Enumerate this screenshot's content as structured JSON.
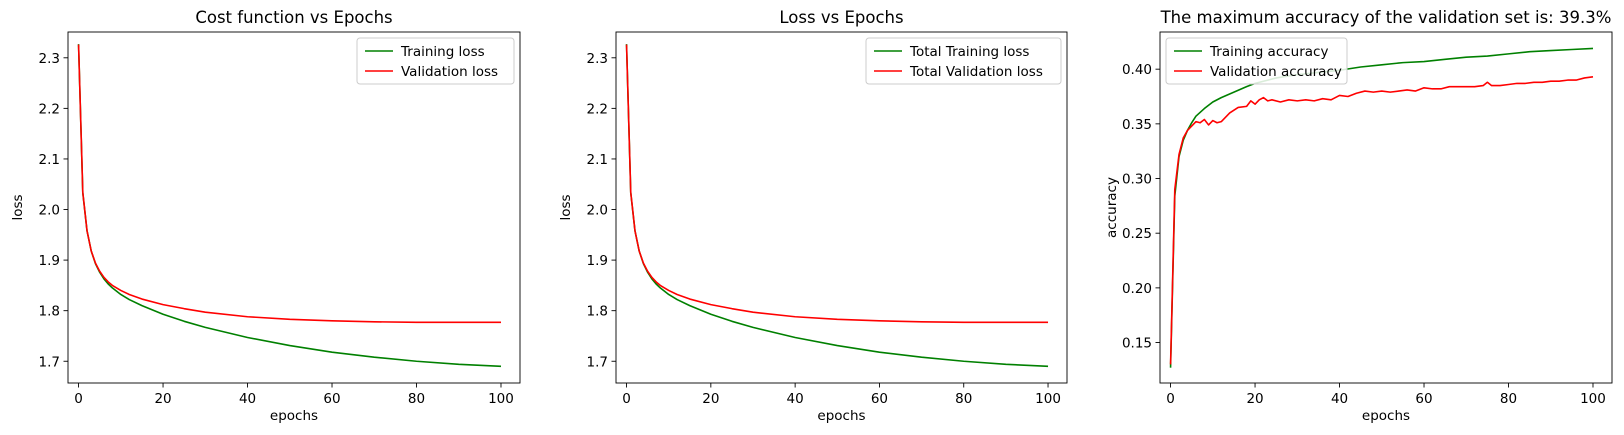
{
  "chart_data": [
    {
      "type": "line",
      "title": "Cost function vs Epochs",
      "xlabel": "epochs",
      "ylabel": "loss",
      "xlim": [
        -2.5,
        104.5
      ],
      "ylim": [
        1.657,
        2.351
      ],
      "xticks": [
        0,
        20,
        40,
        60,
        80,
        100
      ],
      "yticks": [
        1.7,
        1.8,
        1.9,
        2.0,
        2.1,
        2.2,
        2.3
      ],
      "xtick_labels": [
        "0",
        "20",
        "40",
        "60",
        "80",
        "100"
      ],
      "ytick_labels": [
        "1.7",
        "1.8",
        "1.9",
        "2.0",
        "2.1",
        "2.2",
        "2.3"
      ],
      "legend_position": "upper right",
      "x": [
        0,
        1,
        2,
        3,
        4,
        5,
        6,
        7,
        8,
        10,
        12,
        15,
        20,
        25,
        30,
        40,
        50,
        60,
        70,
        80,
        90,
        100
      ],
      "series": [
        {
          "name": "Training loss",
          "color": "#008000",
          "values": [
            2.327,
            2.033,
            1.958,
            1.918,
            1.893,
            1.876,
            1.863,
            1.853,
            1.845,
            1.832,
            1.822,
            1.81,
            1.793,
            1.779,
            1.767,
            1.747,
            1.731,
            1.718,
            1.708,
            1.7,
            1.694,
            1.69
          ]
        },
        {
          "name": "Validation loss",
          "color": "#ff0000",
          "values": [
            2.326,
            2.034,
            1.958,
            1.918,
            1.894,
            1.878,
            1.866,
            1.857,
            1.85,
            1.84,
            1.832,
            1.823,
            1.812,
            1.804,
            1.797,
            1.788,
            1.783,
            1.78,
            1.778,
            1.777,
            1.777,
            1.777
          ]
        }
      ]
    },
    {
      "type": "line",
      "title": "Loss vs Epochs",
      "xlabel": "epochs",
      "ylabel": "loss",
      "xlim": [
        -2.5,
        104.5
      ],
      "ylim": [
        1.657,
        2.351
      ],
      "xticks": [
        0,
        20,
        40,
        60,
        80,
        100
      ],
      "yticks": [
        1.7,
        1.8,
        1.9,
        2.0,
        2.1,
        2.2,
        2.3
      ],
      "xtick_labels": [
        "0",
        "20",
        "40",
        "60",
        "80",
        "100"
      ],
      "ytick_labels": [
        "1.7",
        "1.8",
        "1.9",
        "2.0",
        "2.1",
        "2.2",
        "2.3"
      ],
      "legend_position": "upper right",
      "x": [
        0,
        1,
        2,
        3,
        4,
        5,
        6,
        7,
        8,
        10,
        12,
        15,
        20,
        25,
        30,
        40,
        50,
        60,
        70,
        80,
        90,
        100
      ],
      "series": [
        {
          "name": "Total Training loss",
          "color": "#008000",
          "values": [
            2.327,
            2.033,
            1.958,
            1.918,
            1.893,
            1.876,
            1.863,
            1.853,
            1.845,
            1.832,
            1.822,
            1.81,
            1.793,
            1.779,
            1.767,
            1.747,
            1.731,
            1.718,
            1.708,
            1.7,
            1.694,
            1.69
          ]
        },
        {
          "name": "Total Validation loss",
          "color": "#ff0000",
          "values": [
            2.326,
            2.034,
            1.958,
            1.918,
            1.894,
            1.878,
            1.866,
            1.857,
            1.85,
            1.84,
            1.832,
            1.823,
            1.812,
            1.804,
            1.797,
            1.788,
            1.783,
            1.78,
            1.778,
            1.777,
            1.777,
            1.777
          ]
        }
      ]
    },
    {
      "type": "line",
      "title": "The maximum accuracy of the validation set is: 39.3%",
      "xlabel": "epochs",
      "ylabel": "accuracy",
      "xlim": [
        -2.5,
        104.5
      ],
      "ylim": [
        0.113,
        0.434
      ],
      "xticks": [
        0,
        20,
        40,
        60,
        80,
        100
      ],
      "yticks": [
        0.15,
        0.2,
        0.25,
        0.3,
        0.35,
        0.4
      ],
      "xtick_labels": [
        "0",
        "20",
        "40",
        "60",
        "80",
        "100"
      ],
      "ytick_labels": [
        "0.15",
        "0.20",
        "0.25",
        "0.30",
        "0.35",
        "0.40"
      ],
      "legend_position": "upper left",
      "series": [
        {
          "name": "Training accuracy",
          "color": "#008000",
          "x": [
            0,
            1,
            2,
            3,
            4,
            5,
            6,
            8,
            10,
            12,
            15,
            18,
            20,
            25,
            30,
            35,
            40,
            45,
            50,
            55,
            60,
            65,
            70,
            75,
            80,
            85,
            90,
            95,
            100
          ],
          "values": [
            0.127,
            0.284,
            0.32,
            0.335,
            0.344,
            0.351,
            0.357,
            0.364,
            0.37,
            0.374,
            0.379,
            0.384,
            0.387,
            0.392,
            0.395,
            0.397,
            0.399,
            0.402,
            0.404,
            0.406,
            0.407,
            0.409,
            0.411,
            0.412,
            0.414,
            0.416,
            0.417,
            0.418,
            0.419
          ]
        },
        {
          "name": "Validation accuracy",
          "color": "#ff0000",
          "x": [
            0,
            1,
            2,
            3,
            4,
            5,
            6,
            7,
            8,
            9,
            10,
            11,
            12,
            13,
            14,
            16,
            18,
            19,
            20,
            21,
            22,
            23,
            24,
            26,
            28,
            30,
            32,
            34,
            36,
            38,
            40,
            42,
            44,
            46,
            48,
            50,
            52,
            54,
            56,
            58,
            60,
            62,
            64,
            66,
            68,
            70,
            72,
            74,
            75,
            76,
            78,
            80,
            82,
            84,
            86,
            88,
            90,
            92,
            94,
            96,
            98,
            100
          ],
          "values": [
            0.13,
            0.29,
            0.322,
            0.337,
            0.344,
            0.348,
            0.352,
            0.351,
            0.354,
            0.349,
            0.353,
            0.351,
            0.352,
            0.356,
            0.36,
            0.365,
            0.366,
            0.371,
            0.368,
            0.372,
            0.374,
            0.371,
            0.372,
            0.37,
            0.372,
            0.371,
            0.372,
            0.371,
            0.373,
            0.372,
            0.376,
            0.375,
            0.378,
            0.38,
            0.379,
            0.38,
            0.379,
            0.38,
            0.381,
            0.38,
            0.383,
            0.382,
            0.382,
            0.384,
            0.384,
            0.384,
            0.384,
            0.385,
            0.388,
            0.385,
            0.385,
            0.386,
            0.387,
            0.387,
            0.388,
            0.388,
            0.389,
            0.389,
            0.39,
            0.39,
            0.392,
            0.393
          ]
        }
      ]
    }
  ]
}
